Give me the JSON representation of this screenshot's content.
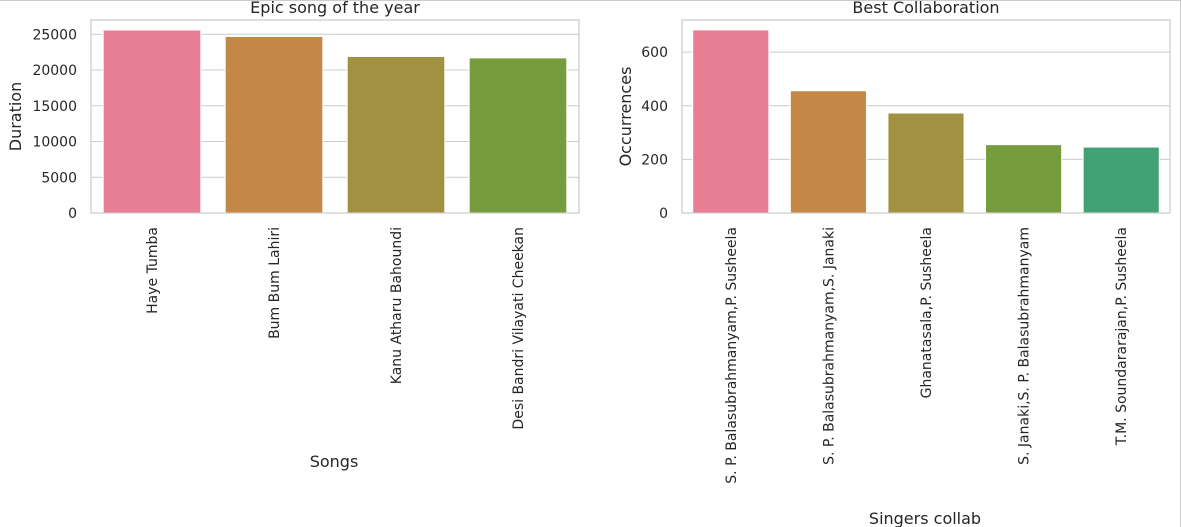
{
  "chart_data": [
    {
      "type": "bar",
      "title": "Epic song of the year",
      "xlabel": "Songs",
      "ylabel": "Duration",
      "categories": [
        "Haye Tumba",
        "Bum Bum Lahiri",
        "Kanu Atharu Bahoundi",
        "Desi Bandri Vilayati Cheekan"
      ],
      "values": [
        25600,
        24700,
        21900,
        21700
      ],
      "colors": [
        "#e87e93",
        "#c48745",
        "#a09240",
        "#779c3d"
      ],
      "ylim": [
        0,
        27000
      ],
      "yticks": [
        0,
        5000,
        10000,
        15000,
        20000,
        25000
      ],
      "grid": true
    },
    {
      "type": "bar",
      "title": "Best Collaboration",
      "xlabel": "Singers collab",
      "ylabel": "Occurrences",
      "categories": [
        "S. P. Balasubrahmanyam,P. Susheela",
        "S. P. Balasubrahmanyam,S. Janaki",
        "Ghanatasala,P. Susheela",
        "S. Janaki,S. P. Balasubrahmanyam",
        "T.M. Soundararajan,P. Susheela"
      ],
      "values": [
        683,
        456,
        373,
        255,
        246
      ],
      "colors": [
        "#e87e93",
        "#c48745",
        "#a09240",
        "#779c3d",
        "#41a276"
      ],
      "ylim": [
        0,
        720
      ],
      "yticks": [
        0,
        200,
        400,
        600
      ],
      "grid": true
    }
  ]
}
